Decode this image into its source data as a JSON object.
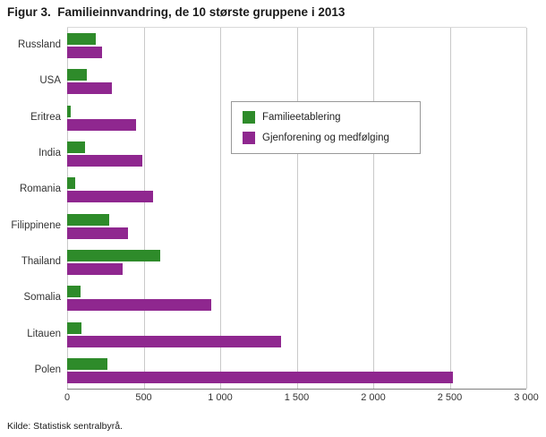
{
  "title": "Figur 3.  Familieinnvandring, de 10 største gruppene i 2013",
  "source": "Kilde: Statistisk sentralbyrå.",
  "chart_data": {
    "type": "bar",
    "orientation": "horizontal",
    "title": "Figur 3.  Familieinnvandring, de 10 største gruppene i 2013",
    "categories": [
      "Russland",
      "USA",
      "Eritrea",
      "India",
      "Romania",
      "Filippinene",
      "Thailand",
      "Somalia",
      "Litauen",
      "Polen"
    ],
    "series": [
      {
        "name": "Familieetablering",
        "color": "#2e8b2a",
        "values": [
          185,
          130,
          25,
          115,
          55,
          275,
          610,
          90,
          95,
          265
        ]
      },
      {
        "name": "Gjenforening og medfølging",
        "color": "#8f278f",
        "values": [
          230,
          290,
          450,
          490,
          560,
          400,
          360,
          940,
          1400,
          2520
        ]
      }
    ],
    "xlim": [
      0,
      3000
    ],
    "xticks": [
      0,
      500,
      1000,
      1500,
      2000,
      2500,
      3000
    ],
    "xtick_labels": [
      "0",
      "500",
      "1 000",
      "1 500",
      "2 000",
      "2 500",
      "3 000"
    ],
    "grid": true,
    "legend_position": "upper-middle"
  }
}
